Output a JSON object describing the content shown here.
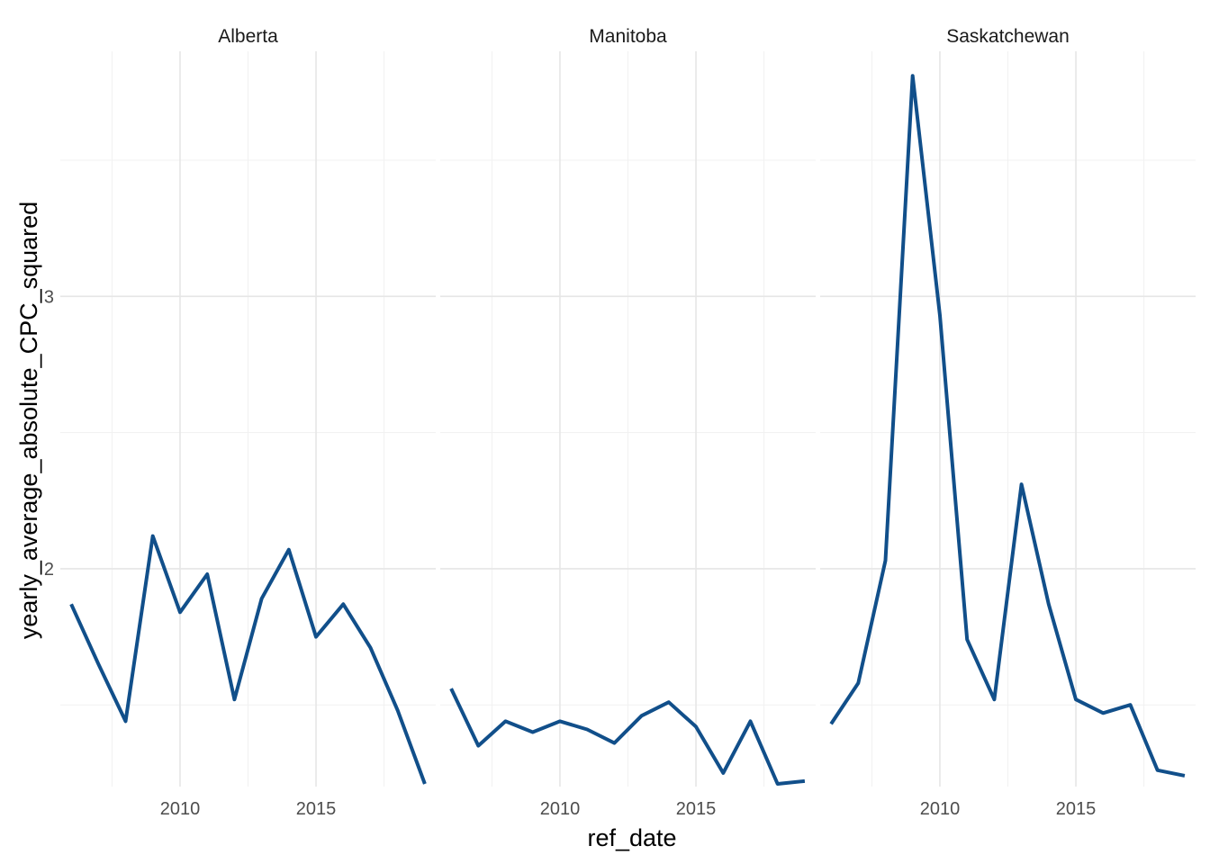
{
  "chart_data": {
    "type": "line",
    "xlabel": "ref_date",
    "ylabel": "yearly_average_absolute_CPC_squared",
    "xlim": [
      2005.6,
      2019.4
    ],
    "ylim": [
      1.2,
      3.9
    ],
    "x_ticks": [
      2010,
      2015
    ],
    "x_tick_labels": [
      "2010",
      "2015"
    ],
    "y_ticks": [
      2,
      3
    ],
    "y_tick_labels": [
      "2",
      "3"
    ],
    "grid": true,
    "line_color": "#114f8a",
    "x": [
      2006,
      2007,
      2008,
      2009,
      2010,
      2011,
      2012,
      2013,
      2014,
      2015,
      2016,
      2017,
      2018,
      2019
    ],
    "panels": [
      {
        "name": "Alberta",
        "values": [
          1.87,
          1.65,
          1.44,
          2.12,
          1.84,
          1.98,
          1.52,
          1.89,
          2.07,
          1.75,
          1.87,
          1.71,
          1.48,
          1.21
        ]
      },
      {
        "name": "Manitoba",
        "values": [
          1.56,
          1.35,
          1.44,
          1.4,
          1.44,
          1.41,
          1.36,
          1.46,
          1.51,
          1.42,
          1.25,
          1.44,
          1.21,
          1.22
        ]
      },
      {
        "name": "Saskatchewan",
        "values": [
          1.43,
          1.58,
          2.03,
          3.81,
          2.93,
          1.74,
          1.52,
          2.31,
          1.87,
          1.52,
          1.47,
          1.5,
          1.26,
          1.24
        ]
      }
    ]
  }
}
